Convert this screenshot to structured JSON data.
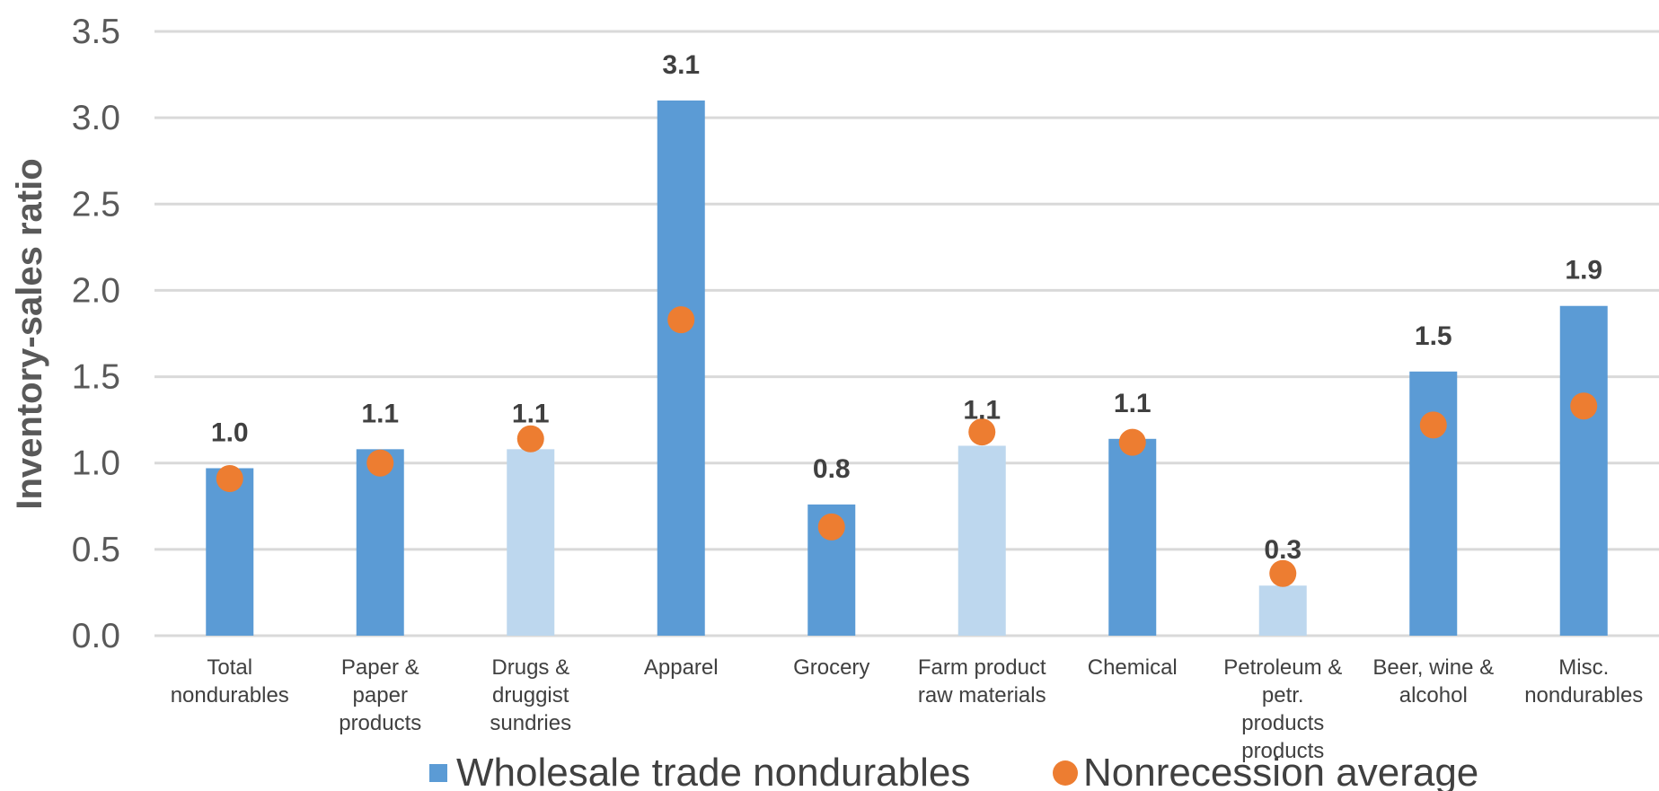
{
  "chart_data": {
    "type": "bar",
    "ylabel": "Inventory-sales ratio",
    "ylim": [
      0,
      3.5
    ],
    "yticks": [
      "0.0",
      "0.5",
      "1.0",
      "1.5",
      "2.0",
      "2.5",
      "3.0",
      "3.5"
    ],
    "categories": [
      [
        "Total",
        "nondurables"
      ],
      [
        "Paper &",
        "paper",
        "products"
      ],
      [
        "Drugs &",
        "druggist",
        "sundries"
      ],
      [
        "Apparel"
      ],
      [
        "Grocery"
      ],
      [
        "Farm product",
        "raw materials"
      ],
      [
        "Chemical"
      ],
      [
        "Petroleum &",
        "petr.",
        "products",
        "products"
      ],
      [
        "Beer, wine &",
        "alcohol"
      ],
      [
        "Misc.",
        "nondurables"
      ]
    ],
    "series": [
      {
        "name": "Wholesale trade nondurables",
        "kind": "bar",
        "values": [
          0.97,
          1.08,
          1.08,
          3.1,
          0.76,
          1.1,
          1.14,
          0.29,
          1.53,
          1.91
        ],
        "data_labels": [
          "1.0",
          "1.1",
          "1.1",
          "3.1",
          "0.8",
          "1.1",
          "1.1",
          "0.3",
          "1.5",
          "1.9"
        ],
        "highlight": [
          false,
          false,
          true,
          false,
          false,
          true,
          false,
          true,
          false,
          false
        ]
      },
      {
        "name": "Nonrecession average",
        "kind": "marker",
        "values": [
          0.91,
          1.0,
          1.14,
          1.83,
          0.63,
          1.18,
          1.12,
          0.36,
          1.22,
          1.33
        ]
      }
    ],
    "colors": {
      "bar": "#5b9bd5",
      "bar_light": "#bdd7ee",
      "marker": "#ed7d31",
      "grid": "#d9d9d9"
    },
    "grid": true,
    "legend_position": "bottom"
  }
}
